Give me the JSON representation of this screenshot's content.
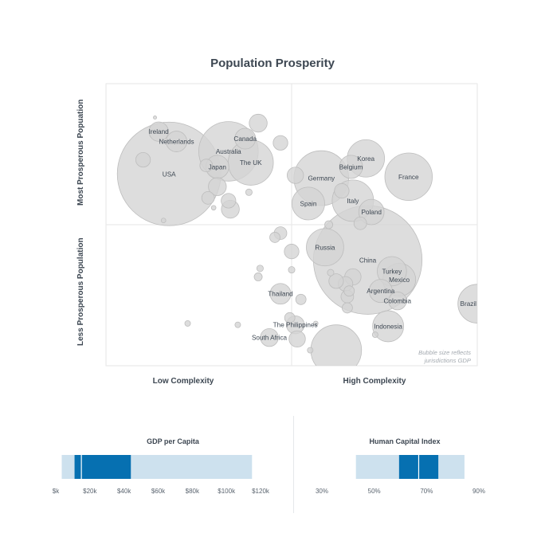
{
  "chart_data": [
    {
      "type": "scatter",
      "subtype": "bubble",
      "title": "Population Prosperity",
      "x_axis_labels": [
        "Low Complexity",
        "High Complexity"
      ],
      "y_axis_labels": [
        "Most Prosperous Popuation",
        "Less Prosperous Population"
      ],
      "xlim": [
        0,
        100
      ],
      "ylim": [
        0,
        100
      ],
      "grid": "quadrant",
      "annotation": [
        "Bubble size reflects",
        "jurisdictions GDP"
      ],
      "colors": {
        "bubble_fill": "#d4d4d4",
        "bubble_stroke": "#bdbdbd",
        "grid": "#e6e6e6"
      },
      "points": [
        {
          "label": "USA",
          "x": 17,
          "y": 68,
          "size": 100
        },
        {
          "label": "Ireland",
          "x": 14.2,
          "y": 83,
          "size": 3.5
        },
        {
          "label": "Netherlands",
          "x": 19,
          "y": 79.5,
          "size": 4
        },
        {
          "label": "Canada",
          "x": 37.5,
          "y": 80.5,
          "size": 4
        },
        {
          "label": "Australia",
          "x": 33,
          "y": 76,
          "size": 33
        },
        {
          "label": "Japan",
          "x": 30,
          "y": 70.5,
          "size": 5
        },
        {
          "label": "The UK",
          "x": 39,
          "y": 72,
          "size": 19
        },
        {
          "label": "Germany",
          "x": 58,
          "y": 66.5,
          "size": 28
        },
        {
          "label": "Korea",
          "x": 70,
          "y": 73.5,
          "size": 13
        },
        {
          "label": "Belgium",
          "x": 66,
          "y": 70.5,
          "size": 5
        },
        {
          "label": "France",
          "x": 81.5,
          "y": 67,
          "size": 21
        },
        {
          "label": "Italy",
          "x": 66.5,
          "y": 58.5,
          "size": 16
        },
        {
          "label": "Spain",
          "x": 54.5,
          "y": 57.5,
          "size": 10
        },
        {
          "label": "Poland",
          "x": 71.5,
          "y": 54.5,
          "size": 6
        },
        {
          "label": "Russia",
          "x": 59,
          "y": 42,
          "size": 13
        },
        {
          "label": "China",
          "x": 70.5,
          "y": 37.5,
          "size": 110
        },
        {
          "label": "Turkey",
          "x": 77,
          "y": 33.5,
          "size": 8
        },
        {
          "label": "Mexico",
          "x": 79,
          "y": 30.5,
          "size": 10
        },
        {
          "label": "Argentina",
          "x": 74,
          "y": 26.5,
          "size": 5
        },
        {
          "label": "Colombia",
          "x": 78.5,
          "y": 23,
          "size": 3
        },
        {
          "label": "Brazil",
          "x": 100,
          "y": 22,
          "size": 14
        },
        {
          "label": "Thailand",
          "x": 47,
          "y": 25.5,
          "size": 4
        },
        {
          "label": "The Philippines",
          "x": 51,
          "y": 14.5,
          "size": 3
        },
        {
          "label": "South Africa",
          "x": 44,
          "y": 10,
          "size": 3
        },
        {
          "label": "Indonesia",
          "x": 76,
          "y": 14,
          "size": 9
        },
        {
          "label": "",
          "x": 41,
          "y": 86,
          "size": 3
        },
        {
          "label": "",
          "x": 47,
          "y": 79,
          "size": 2
        },
        {
          "label": "",
          "x": 10,
          "y": 73,
          "size": 2
        },
        {
          "label": "",
          "x": 27,
          "y": 71,
          "size": 1.5
        },
        {
          "label": "",
          "x": 51,
          "y": 67.5,
          "size": 2.5
        },
        {
          "label": "",
          "x": 30,
          "y": 63.5,
          "size": 3
        },
        {
          "label": "",
          "x": 27.5,
          "y": 59.5,
          "size": 1.5
        },
        {
          "label": "",
          "x": 33,
          "y": 58.5,
          "size": 2
        },
        {
          "label": "",
          "x": 33.5,
          "y": 55.5,
          "size": 3
        },
        {
          "label": "",
          "x": 38.5,
          "y": 61.5,
          "size": 0.4
        },
        {
          "label": "",
          "x": 29,
          "y": 56,
          "size": 0.2
        },
        {
          "label": "",
          "x": 15.5,
          "y": 51.5,
          "size": 0.2
        },
        {
          "label": "",
          "x": 13.2,
          "y": 88,
          "size": 0.1
        },
        {
          "label": "",
          "x": 63.5,
          "y": 62,
          "size": 2
        },
        {
          "label": "",
          "x": 68.5,
          "y": 50.5,
          "size": 1.5
        },
        {
          "label": "",
          "x": 60,
          "y": 50,
          "size": 0.6
        },
        {
          "label": "",
          "x": 47,
          "y": 47,
          "size": 1.5
        },
        {
          "label": "",
          "x": 45.5,
          "y": 45.5,
          "size": 1
        },
        {
          "label": "",
          "x": 50,
          "y": 40.5,
          "size": 2
        },
        {
          "label": "",
          "x": 41.5,
          "y": 34.5,
          "size": 0.4
        },
        {
          "label": "",
          "x": 41,
          "y": 31.5,
          "size": 0.6
        },
        {
          "label": "",
          "x": 50,
          "y": 34,
          "size": 0.4
        },
        {
          "label": "",
          "x": 66.5,
          "y": 31.5,
          "size": 2.5
        },
        {
          "label": "",
          "x": 64.5,
          "y": 29,
          "size": 2
        },
        {
          "label": "",
          "x": 62,
          "y": 30,
          "size": 2
        },
        {
          "label": "",
          "x": 60.5,
          "y": 33,
          "size": 0.4
        },
        {
          "label": "",
          "x": 65,
          "y": 24.5,
          "size": 1.5
        },
        {
          "label": "",
          "x": 65.5,
          "y": 26.5,
          "size": 1
        },
        {
          "label": "",
          "x": 52.5,
          "y": 23.5,
          "size": 1
        },
        {
          "label": "",
          "x": 65,
          "y": 20.5,
          "size": 1
        },
        {
          "label": "",
          "x": 49.5,
          "y": 17,
          "size": 1
        },
        {
          "label": "",
          "x": 56.5,
          "y": 15,
          "size": 0.2
        },
        {
          "label": "",
          "x": 35.5,
          "y": 14.5,
          "size": 0.3
        },
        {
          "label": "",
          "x": 22,
          "y": 15,
          "size": 0.3
        },
        {
          "label": "",
          "x": 51.5,
          "y": 9.5,
          "size": 2.5
        },
        {
          "label": "",
          "x": 55,
          "y": 5.5,
          "size": 0.3
        },
        {
          "label": "",
          "x": 62,
          "y": 5.5,
          "size": 24
        },
        {
          "label": "",
          "x": 72.5,
          "y": 11,
          "size": 0.3
        }
      ]
    },
    {
      "type": "range",
      "title": "GDP per Capita",
      "unit": "$",
      "axis_min": 0,
      "axis_max": 120,
      "ticks": [
        0,
        20,
        40,
        60,
        80,
        100,
        120
      ],
      "tick_labels": [
        "$k",
        "$20k",
        "$40k",
        "$60k",
        "$80k",
        "$100k",
        "$120k"
      ],
      "full_range": [
        3.5,
        115
      ],
      "dark_range": [
        11,
        44
      ],
      "split_marks": [
        15
      ],
      "colors": {
        "light": "#cde1ee",
        "dark": "#0670b1"
      }
    },
    {
      "type": "range",
      "title": "Human Capital Index",
      "unit": "%",
      "axis_min": 30,
      "axis_max": 90,
      "ticks": [
        30,
        50,
        70,
        90
      ],
      "tick_labels": [
        "30%",
        "50%",
        "70%",
        "90%"
      ],
      "full_range": [
        43,
        84.5
      ],
      "dark_range": [
        59.5,
        74.5
      ],
      "split_marks": [
        67
      ],
      "colors": {
        "light": "#cde1ee",
        "dark": "#0670b1"
      }
    }
  ]
}
